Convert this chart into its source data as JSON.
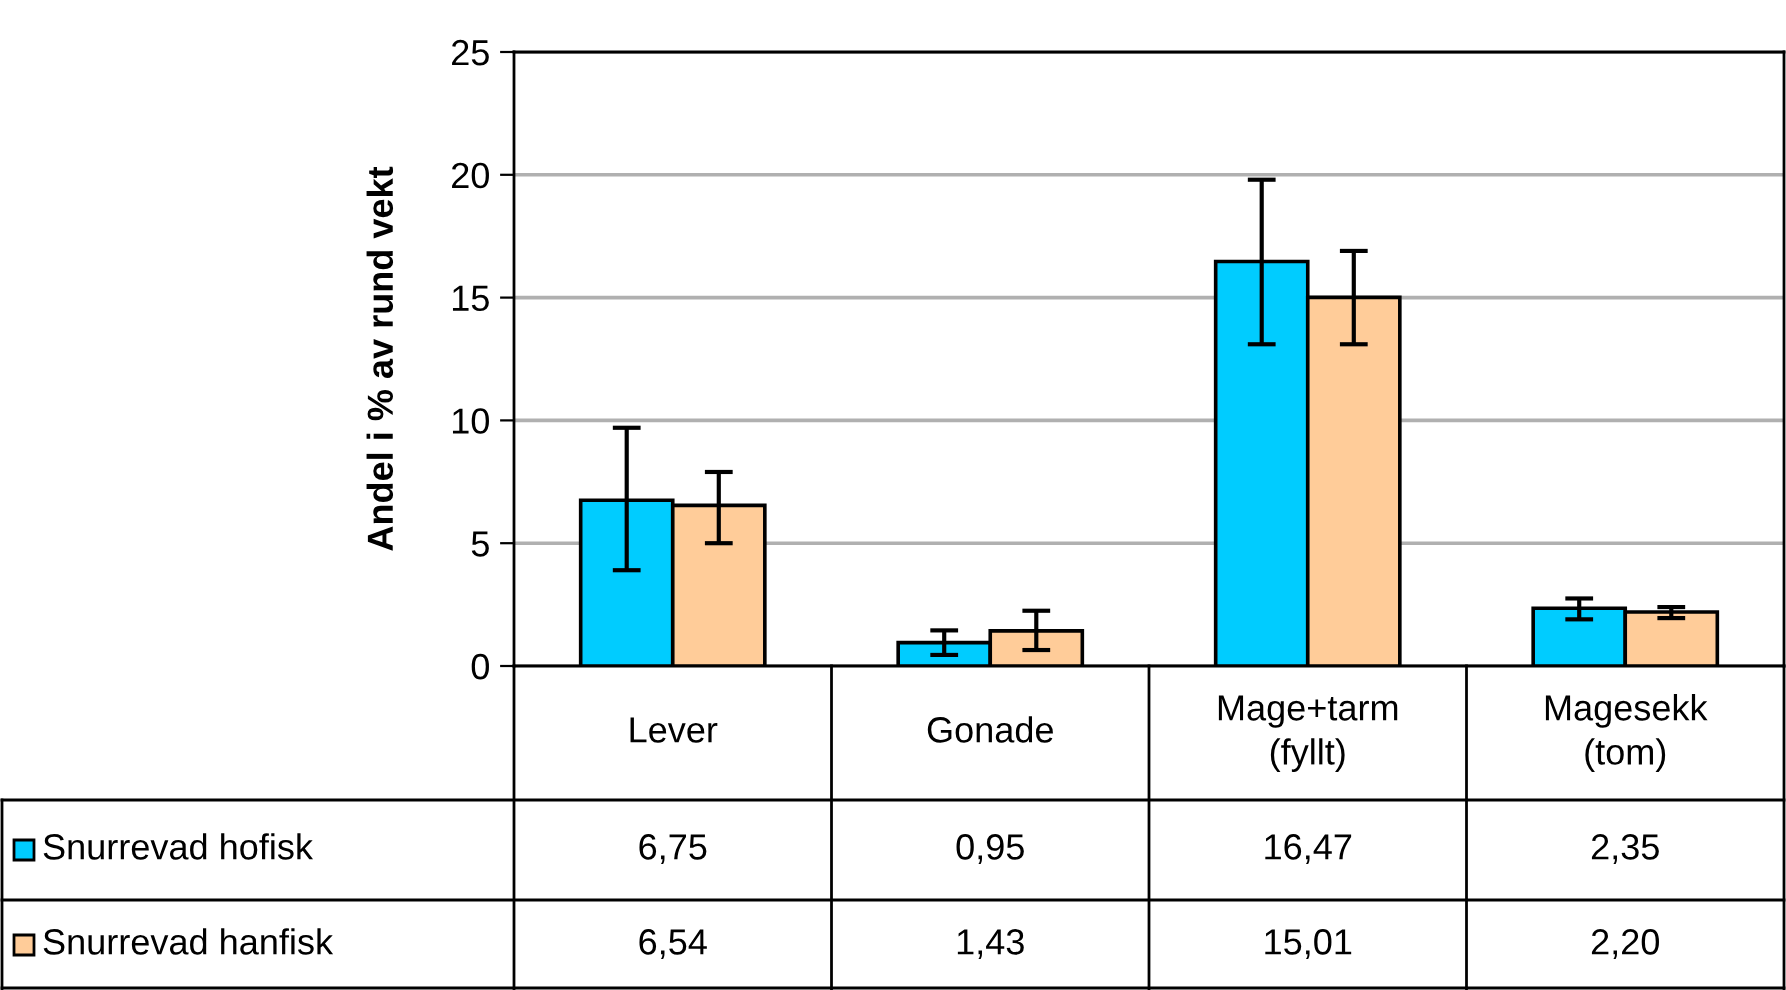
{
  "chart_data": {
    "type": "bar",
    "ylabel": "Andel i % av rund vekt",
    "categories": [
      "Lever",
      "Gonade",
      "Mage+tarm\n(fyllt)",
      "Magesekk\n(tom)"
    ],
    "series": [
      {
        "name": "Snurrevad hofisk",
        "color": "#00ccff",
        "values": [
          6.75,
          0.95,
          16.47,
          2.35
        ],
        "value_labels": [
          "6,75",
          "0,95",
          "16,47",
          "2,35"
        ],
        "errors": [
          [
            3.9,
            9.7
          ],
          [
            0.45,
            1.45
          ],
          [
            13.1,
            19.8
          ],
          [
            1.9,
            2.75
          ]
        ]
      },
      {
        "name": "Snurrevad hanfisk",
        "color": "#ffcc99",
        "values": [
          6.54,
          1.43,
          15.01,
          2.2
        ],
        "value_labels": [
          "6,54",
          "1,43",
          "15,01",
          "2,20"
        ],
        "errors": [
          [
            5.0,
            7.9
          ],
          [
            0.65,
            2.25
          ],
          [
            13.1,
            16.9
          ],
          [
            1.95,
            2.4
          ]
        ]
      }
    ],
    "ylim": [
      0,
      25
    ],
    "yticks": [
      0,
      5,
      10,
      15,
      20,
      25
    ],
    "grid": "y",
    "legend": "bottom"
  }
}
